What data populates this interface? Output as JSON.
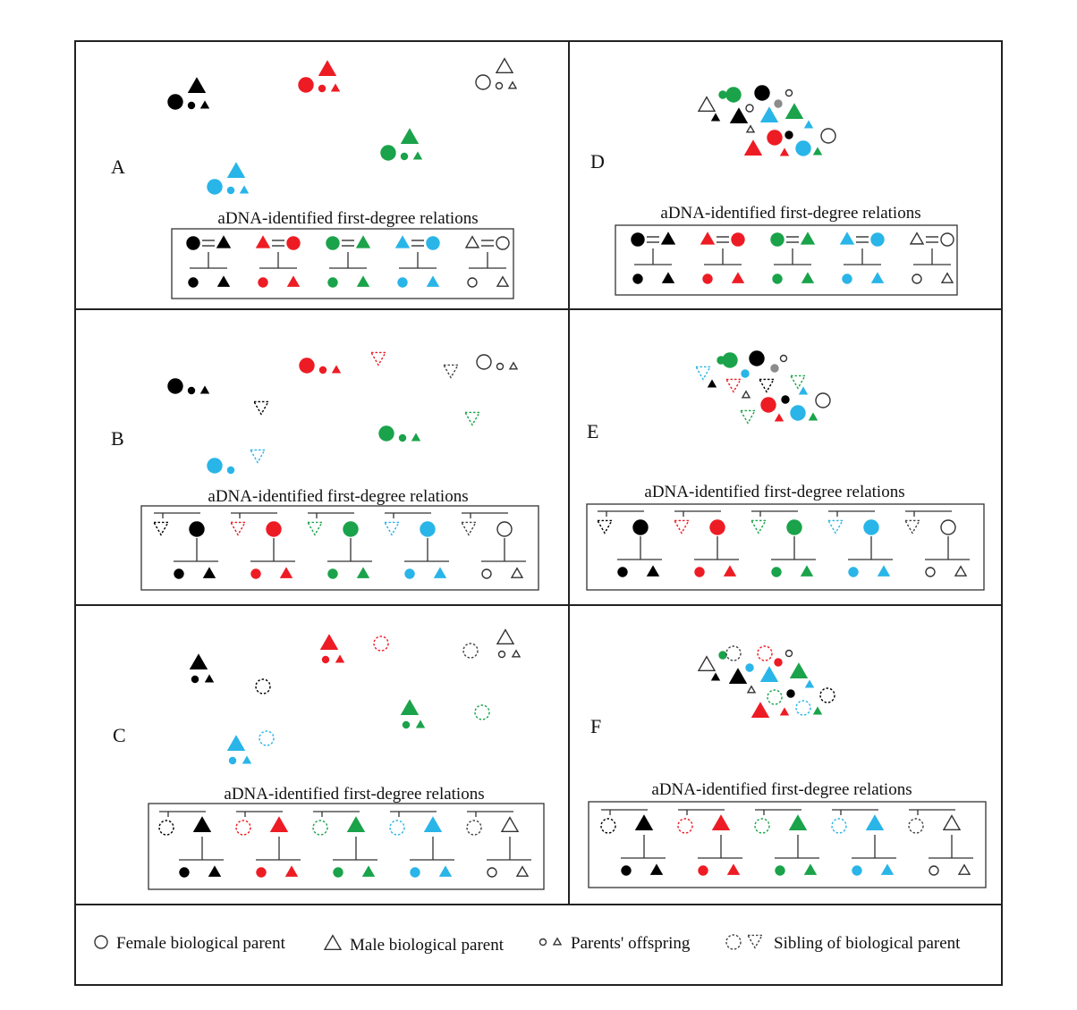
{
  "colors": {
    "black": "#000000",
    "red": "#ed1c24",
    "green": "#1aa34a",
    "blue": "#29b5e8",
    "white": "#ffffff",
    "gray": "#8c8c8c",
    "outline": "#222222"
  },
  "relations_title": "aDNA-identified first-degree relations",
  "panels": [
    {
      "label": "A"
    },
    {
      "label": "B"
    },
    {
      "label": "C"
    },
    {
      "label": "D"
    },
    {
      "label": "E"
    },
    {
      "label": "F"
    }
  ],
  "legend": {
    "female_parent": "Female biological parent",
    "male_parent": "Male biological parent",
    "offspring": "Parents' offspring",
    "sibling": "Sibling of biological parent"
  }
}
